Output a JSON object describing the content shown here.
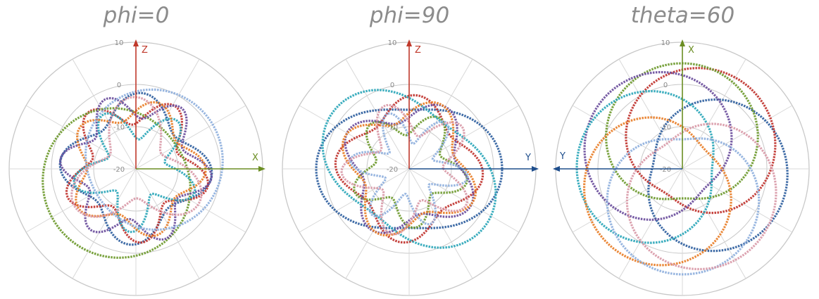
{
  "chart_data": [
    {
      "type": "polar",
      "title": "phi=0",
      "r_ticks": [
        "10",
        "0",
        "-10",
        "-20"
      ],
      "rlim": [
        -20,
        10
      ],
      "grid": true,
      "axes": [
        {
          "label": "Z",
          "direction": "up",
          "color": "#c0392b"
        },
        {
          "label": "X",
          "direction": "right",
          "color": "#6b8e23"
        }
      ],
      "series": [
        {
          "color": "#2e5e9e",
          "base": -5,
          "amp": 3,
          "k": 4,
          "phase": 0.3
        },
        {
          "color": "#c0332e",
          "base": -6,
          "amp": 3.5,
          "k": 5,
          "phase": 1.2
        },
        {
          "color": "#6e9a2e",
          "base": -3,
          "amp": 6,
          "k": 1,
          "phase": 2.5
        },
        {
          "color": "#6a4d9c",
          "base": -5,
          "amp": 3,
          "k": 6,
          "phase": 0.7
        },
        {
          "color": "#2aa6b8",
          "base": -9,
          "amp": 4,
          "k": 5,
          "phase": 2.0
        },
        {
          "color": "#e87e28",
          "base": -6,
          "amp": 2.5,
          "k": 5,
          "phase": 0.1
        },
        {
          "color": "#8fb0dd",
          "base": -4,
          "amp": 5,
          "k": 1,
          "phase": 5.8
        },
        {
          "color": "#d99aa8",
          "base": -8,
          "amp": 5,
          "k": 3,
          "phase": 1.5
        }
      ]
    },
    {
      "type": "polar",
      "title": "phi=90",
      "r_ticks": [
        "10",
        "0",
        "-10",
        "-20"
      ],
      "rlim": [
        -20,
        10
      ],
      "grid": true,
      "axes": [
        {
          "label": "Z",
          "direction": "up",
          "color": "#c0392b"
        },
        {
          "label": "Y",
          "direction": "right",
          "color": "#1f4e8c"
        }
      ],
      "series": [
        {
          "color": "#2e5e9e",
          "base": -2,
          "amp": 4,
          "k": 2,
          "phase": 0.0
        },
        {
          "color": "#c0332e",
          "base": -5,
          "amp": 2.5,
          "k": 4,
          "phase": 0.4
        },
        {
          "color": "#6e9a2e",
          "base": -9,
          "amp": 3,
          "k": 5,
          "phase": 1.1
        },
        {
          "color": "#6a4d9c",
          "base": -6,
          "amp": 3,
          "k": 4,
          "phase": 2.2
        },
        {
          "color": "#2aa6b8",
          "base": -2,
          "amp": 4.5,
          "k": 2,
          "phase": 1.3
        },
        {
          "color": "#e87e28",
          "base": -6,
          "amp": 3,
          "k": 4,
          "phase": 1.8
        },
        {
          "color": "#8fb0dd",
          "base": -10,
          "amp": 4,
          "k": 6,
          "phase": 0.9
        },
        {
          "color": "#d99aa8",
          "base": -8,
          "amp": 4,
          "k": 5,
          "phase": 2.9
        }
      ]
    },
    {
      "type": "polar",
      "title": "theta=60",
      "r_ticks": [
        "10",
        "0",
        "-10",
        "-20"
      ],
      "rlim": [
        -20,
        10
      ],
      "grid": true,
      "axes": [
        {
          "label": "X",
          "direction": "up",
          "color": "#6b8e23"
        },
        {
          "label": "Y",
          "direction": "left",
          "color": "#1f4e8c"
        }
      ],
      "series": [
        {
          "color": "#2e5e9e",
          "base": -4,
          "amp": 9,
          "k": 1,
          "phase": 0.2
        },
        {
          "color": "#c0332e",
          "base": -4,
          "amp": 9,
          "k": 1,
          "phase": 5.3
        },
        {
          "color": "#6e9a2e",
          "base": -4,
          "amp": 9,
          "k": 1,
          "phase": 4.7
        },
        {
          "color": "#6a4d9c",
          "base": -4,
          "amp": 9,
          "k": 1,
          "phase": 3.9
        },
        {
          "color": "#2aa6b8",
          "base": -4,
          "amp": 9,
          "k": 1,
          "phase": 3.2
        },
        {
          "color": "#e87e28",
          "base": -4,
          "amp": 9,
          "k": 1,
          "phase": 2.4
        },
        {
          "color": "#8fb0dd",
          "base": -4,
          "amp": 9,
          "k": 1,
          "phase": 1.55
        },
        {
          "color": "#d99aa8",
          "base": -4,
          "amp": 9,
          "k": 1,
          "phase": 0.95
        }
      ]
    }
  ]
}
